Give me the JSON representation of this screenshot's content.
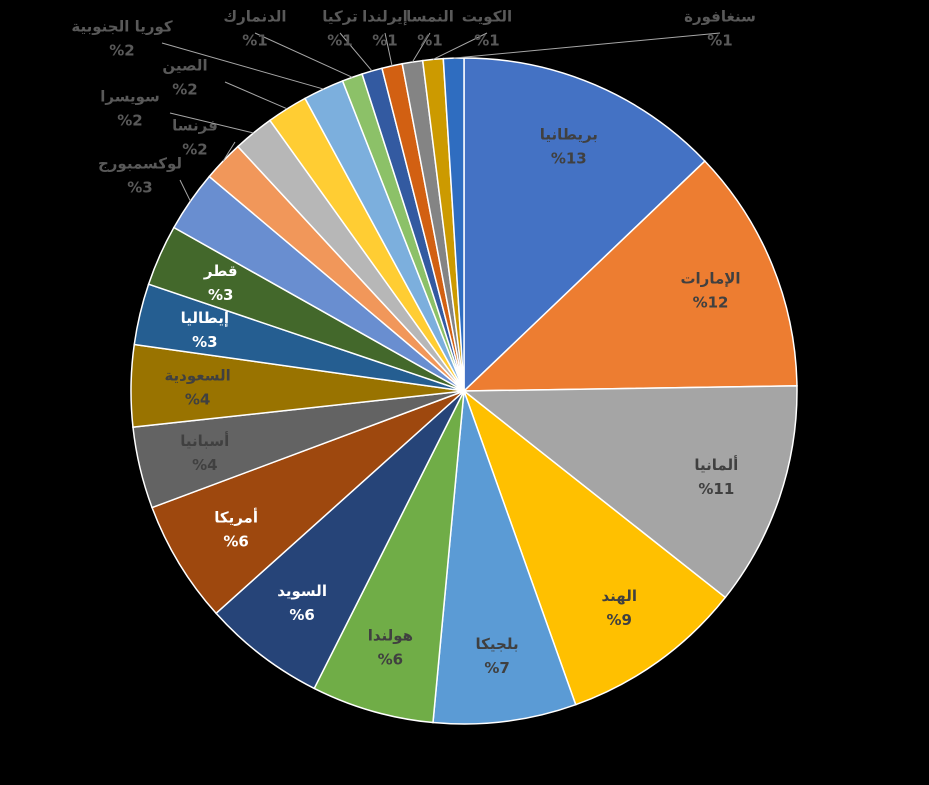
{
  "chart_data": {
    "type": "pie",
    "categories": [
      "بريطانيا",
      "الإمارات",
      "ألمانيا",
      "الهند",
      "بلجيكا",
      "هولندا",
      "السويد",
      "أمريكا",
      "أسبانيا",
      "السعودية",
      "إيطاليا",
      "قطر",
      "لوكسمبورج",
      "فرنسا",
      "سويسرا",
      "الصين",
      "كوريا الجنوبية",
      "الدنمارك",
      "تركيا",
      "إيرلندا",
      "النمسا",
      "الكويت",
      "سنغافورة"
    ],
    "values": [
      13,
      12,
      11,
      9,
      7,
      6,
      6,
      6,
      4,
      4,
      3,
      3,
      3,
      2,
      2,
      2,
      2,
      1,
      1,
      1,
      1,
      1,
      1
    ],
    "value_labels": [
      "%13",
      "%12",
      "%11",
      "%9",
      "%7",
      "%6",
      "%6",
      "%6",
      "%4",
      "%4",
      "%3",
      "%3",
      "%3",
      "%2",
      "%2",
      "%2",
      "%2",
      "%1",
      "%1",
      "%1",
      "%1",
      "%1",
      "%1"
    ],
    "colors": [
      "#4472c4",
      "#ed7d31",
      "#a5a5a5",
      "#ffc000",
      "#5b9bd5",
      "#70ad47",
      "#264478",
      "#9e480e",
      "#636363",
      "#997300",
      "#255e91",
      "#43682b",
      "#698ed0",
      "#f1975a",
      "#b7b7b7",
      "#ffcd33",
      "#7cafdd",
      "#8cc168",
      "#335aa1",
      "#d26012",
      "#848484",
      "#cc9a00",
      "#2f6dc0"
    ]
  }
}
